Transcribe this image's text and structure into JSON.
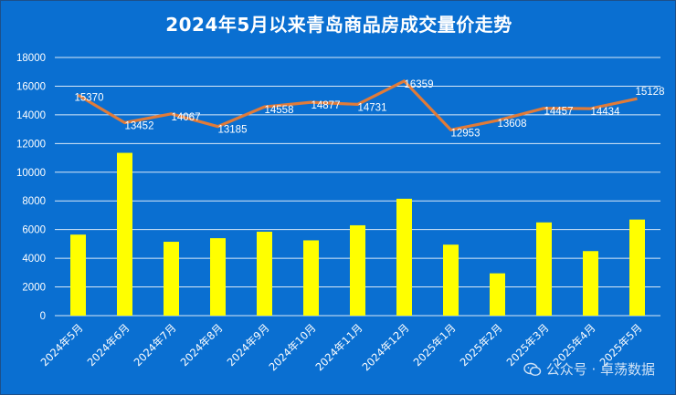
{
  "chart_data": {
    "type": "bar",
    "title": "2024年5月以来青岛商品房成交量价走势",
    "categories": [
      "2024年5月",
      "2024年6月",
      "2024年7月",
      "2024年8月",
      "2024年9月",
      "2024年10月",
      "2024年11月",
      "2024年12月",
      "2025年1月",
      "2025年2月",
      "2025年3月",
      "2025年4月",
      "2025年5月"
    ],
    "series": [
      {
        "type": "bar",
        "values": [
          5650,
          11350,
          5150,
          5400,
          5850,
          5250,
          6300,
          8150,
          4950,
          2950,
          6500,
          4500,
          6700
        ],
        "color": "#ffff00"
      },
      {
        "type": "line",
        "values": [
          15370,
          13452,
          14067,
          13185,
          14558,
          14877,
          14731,
          16359,
          12953,
          13608,
          14457,
          14434,
          15128
        ],
        "color": "#e07b39",
        "labels": [
          "15370",
          "13452",
          "14067",
          "13185",
          "14558",
          "14877",
          "14731",
          "16359",
          "12953",
          "13608",
          "14457",
          "14434",
          "15128"
        ]
      }
    ],
    "ylim": [
      0,
      18000
    ],
    "yticks": [
      "0",
      "2000",
      "4000",
      "6000",
      "8000",
      "10000",
      "12000",
      "14000",
      "16000",
      "18000"
    ],
    "grid": true,
    "legend": "none"
  },
  "watermark": {
    "icon": "wechat-icon",
    "text": "公众号 · 卓荡数据"
  },
  "colors": {
    "background": "#0a6fd1",
    "bar": "#ffff00",
    "line": "#e07b39",
    "text": "#ffffff"
  }
}
